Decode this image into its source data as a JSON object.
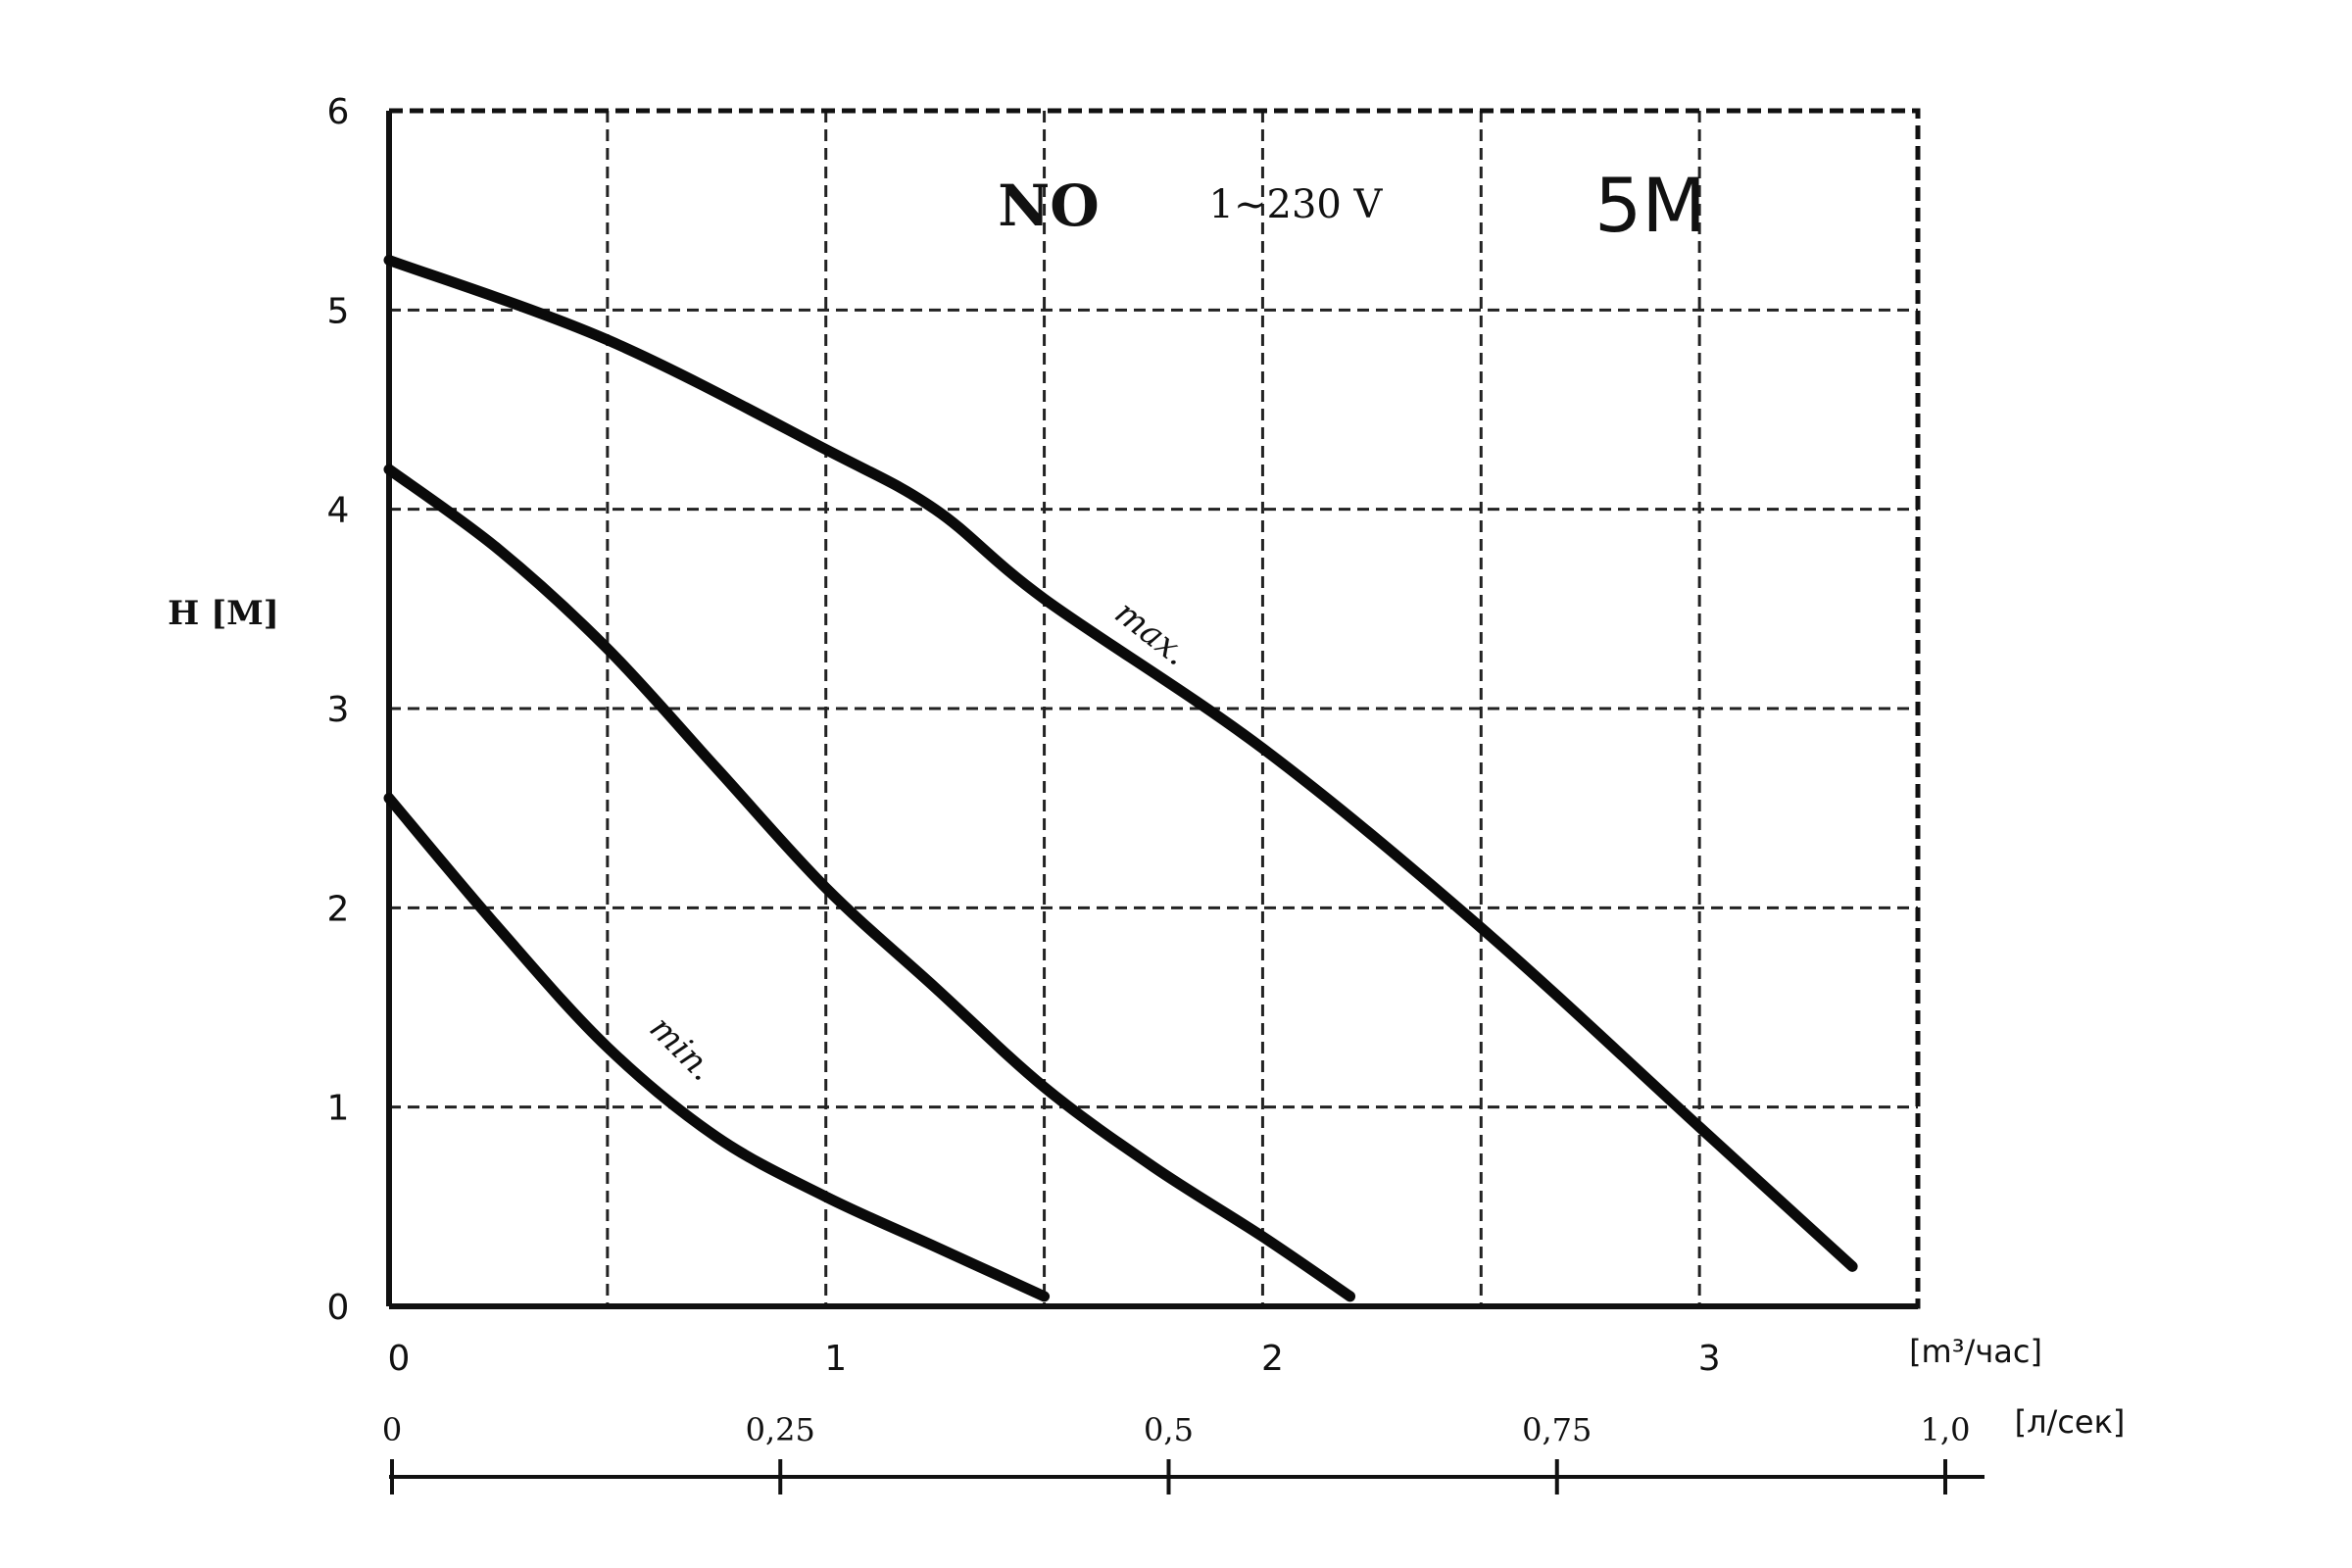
{
  "chart_data": {
    "type": "line",
    "title": "",
    "xlabel": "[m³/час]",
    "xlabel_secondary": "[л/сек]",
    "ylabel": "H [M]",
    "xlim": [
      0,
      3.5
    ],
    "ylim": [
      0,
      6
    ],
    "grid": true,
    "x_ticks": [
      "0",
      "1",
      "2",
      "3"
    ],
    "x_tick_values": [
      0,
      1,
      2,
      3
    ],
    "x_secondary_ticks": [
      "0",
      "0,25",
      "0,5",
      "0,75",
      "1,0"
    ],
    "x_secondary_tick_values": [
      0,
      0.25,
      0.5,
      0.75,
      1.0
    ],
    "y_ticks": [
      "0",
      "1",
      "2",
      "3",
      "4",
      "5",
      "6"
    ],
    "y_tick_values": [
      0,
      1,
      2,
      3,
      4,
      5,
      6
    ],
    "annotations": {
      "no": "NO",
      "voltage": "1~230 V",
      "model": "5M"
    },
    "series": [
      {
        "name": "max.",
        "x": [
          0,
          0.5,
          1.0,
          1.25,
          1.5,
          2.0,
          2.5,
          3.0,
          3.35
        ],
        "y": [
          5.25,
          4.85,
          4.3,
          4.0,
          3.55,
          2.8,
          1.9,
          0.9,
          0.2
        ]
      },
      {
        "name": "",
        "x": [
          0,
          0.25,
          0.5,
          0.75,
          1.0,
          1.25,
          1.5,
          1.75,
          2.0,
          2.2
        ],
        "y": [
          4.2,
          3.8,
          3.3,
          2.7,
          2.1,
          1.6,
          1.1,
          0.7,
          0.35,
          0.05
        ]
      },
      {
        "name": "min.",
        "x": [
          0,
          0.25,
          0.5,
          0.75,
          1.0,
          1.25,
          1.5
        ],
        "y": [
          2.55,
          1.9,
          1.3,
          0.85,
          0.55,
          0.3,
          0.05
        ]
      }
    ]
  }
}
